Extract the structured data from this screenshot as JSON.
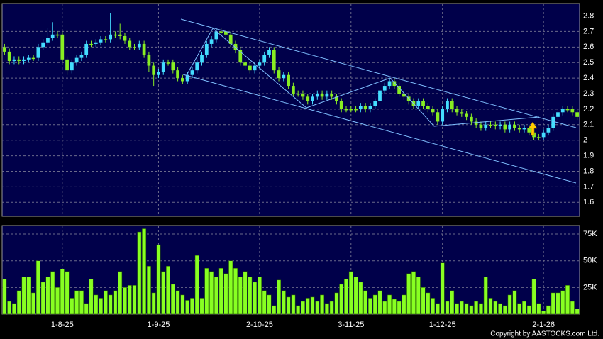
{
  "chart_data": [
    {
      "type": "candlestick",
      "open": [
        2.6,
        2.57,
        2.51,
        2.52,
        2.51,
        2.52,
        2.53,
        2.53,
        2.6,
        2.63,
        2.66,
        2.68,
        2.68,
        2.52,
        2.45,
        2.5,
        2.53,
        2.55,
        2.62,
        2.62,
        2.63,
        2.65,
        2.65,
        2.68,
        2.68,
        2.67,
        2.64,
        2.6,
        2.6,
        2.62,
        2.55,
        2.48,
        2.42,
        2.44,
        2.5,
        2.5,
        2.45,
        2.4,
        2.38,
        2.42,
        2.45,
        2.5,
        2.55,
        2.62,
        2.65,
        2.7,
        2.7,
        2.68,
        2.62,
        2.58,
        2.5,
        2.48,
        2.45,
        2.48,
        2.5,
        2.55,
        2.58,
        2.45,
        2.4,
        2.42,
        2.35,
        2.3,
        2.3,
        2.28,
        2.25,
        2.28,
        2.3,
        2.28,
        2.3,
        2.28,
        2.25,
        2.2,
        2.2,
        2.2,
        2.2,
        2.22,
        2.2,
        2.22,
        2.25,
        2.32,
        2.35,
        2.38,
        2.35,
        2.3,
        2.28,
        2.25,
        2.22,
        2.25,
        2.22,
        2.2,
        2.18,
        2.12,
        2.2,
        2.25,
        2.2,
        2.18,
        2.17,
        2.15,
        2.12,
        2.1,
        2.08,
        2.1,
        2.1,
        2.09,
        2.1,
        2.07,
        2.1,
        2.08,
        2.07,
        2.08,
        2.05,
        2.02,
        2.02,
        2.05,
        2.08,
        2.15,
        2.18,
        2.2,
        2.2,
        2.18
      ],
      "high": [
        2.62,
        2.59,
        2.54,
        2.54,
        2.54,
        2.55,
        2.55,
        2.62,
        2.65,
        2.72,
        2.76,
        2.7,
        2.7,
        2.54,
        2.52,
        2.55,
        2.57,
        2.64,
        2.64,
        2.65,
        2.67,
        2.67,
        2.82,
        2.7,
        2.75,
        2.69,
        2.66,
        2.62,
        2.64,
        2.64,
        2.57,
        2.5,
        2.46,
        2.52,
        2.52,
        2.52,
        2.47,
        2.42,
        2.44,
        2.47,
        2.52,
        2.57,
        2.64,
        2.67,
        2.72,
        2.72,
        2.7,
        2.7,
        2.64,
        2.6,
        2.52,
        2.5,
        2.5,
        2.52,
        2.57,
        2.6,
        2.6,
        2.47,
        2.44,
        2.44,
        2.37,
        2.32,
        2.32,
        2.3,
        2.3,
        2.32,
        2.32,
        2.32,
        2.32,
        2.3,
        2.27,
        2.22,
        2.22,
        2.22,
        2.24,
        2.24,
        2.24,
        2.27,
        2.34,
        2.37,
        2.4,
        2.4,
        2.37,
        2.32,
        2.3,
        2.27,
        2.27,
        2.27,
        2.24,
        2.22,
        2.2,
        2.22,
        2.27,
        2.27,
        2.22,
        2.2,
        2.19,
        2.17,
        2.14,
        2.12,
        2.12,
        2.12,
        2.12,
        2.12,
        2.12,
        2.12,
        2.12,
        2.1,
        2.1,
        2.1,
        2.07,
        2.04,
        2.07,
        2.1,
        2.17,
        2.2,
        2.22,
        2.22,
        2.22,
        2.2
      ],
      "low": [
        2.55,
        2.49,
        2.49,
        2.49,
        2.49,
        2.5,
        2.51,
        2.51,
        2.58,
        2.61,
        2.64,
        2.66,
        2.5,
        2.42,
        2.43,
        2.48,
        2.51,
        2.53,
        2.6,
        2.6,
        2.61,
        2.63,
        2.63,
        2.66,
        2.65,
        2.62,
        2.58,
        2.58,
        2.58,
        2.53,
        2.44,
        2.35,
        2.4,
        2.42,
        2.48,
        2.43,
        2.38,
        2.36,
        2.36,
        2.4,
        2.43,
        2.48,
        2.53,
        2.6,
        2.63,
        2.68,
        2.66,
        2.6,
        2.56,
        2.48,
        2.46,
        2.43,
        2.43,
        2.46,
        2.48,
        2.53,
        2.43,
        2.38,
        2.38,
        2.33,
        2.28,
        2.28,
        2.26,
        2.23,
        2.23,
        2.26,
        2.26,
        2.26,
        2.26,
        2.23,
        2.18,
        2.18,
        2.18,
        2.18,
        2.18,
        2.18,
        2.18,
        2.2,
        2.23,
        2.3,
        2.33,
        2.33,
        2.28,
        2.26,
        2.23,
        2.2,
        2.2,
        2.2,
        2.18,
        2.16,
        2.1,
        2.1,
        2.18,
        2.18,
        2.16,
        2.15,
        2.13,
        2.1,
        2.08,
        2.06,
        2.06,
        2.08,
        2.07,
        2.07,
        2.05,
        2.05,
        2.06,
        2.05,
        2.05,
        2.03,
        2.0,
        2.0,
        2.0,
        2.03,
        2.06,
        2.13,
        2.16,
        2.18,
        2.16,
        2.13
      ],
      "close": [
        2.57,
        2.51,
        2.52,
        2.51,
        2.52,
        2.53,
        2.53,
        2.6,
        2.63,
        2.66,
        2.68,
        2.68,
        2.52,
        2.45,
        2.5,
        2.53,
        2.55,
        2.62,
        2.62,
        2.63,
        2.65,
        2.65,
        2.68,
        2.68,
        2.67,
        2.64,
        2.6,
        2.6,
        2.62,
        2.55,
        2.48,
        2.42,
        2.44,
        2.5,
        2.5,
        2.45,
        2.4,
        2.38,
        2.42,
        2.45,
        2.5,
        2.55,
        2.62,
        2.65,
        2.7,
        2.7,
        2.68,
        2.62,
        2.58,
        2.5,
        2.48,
        2.45,
        2.48,
        2.5,
        2.55,
        2.58,
        2.45,
        2.4,
        2.42,
        2.35,
        2.3,
        2.3,
        2.28,
        2.25,
        2.28,
        2.3,
        2.28,
        2.3,
        2.28,
        2.25,
        2.2,
        2.2,
        2.2,
        2.2,
        2.22,
        2.2,
        2.22,
        2.25,
        2.32,
        2.35,
        2.38,
        2.35,
        2.3,
        2.28,
        2.25,
        2.22,
        2.25,
        2.22,
        2.2,
        2.18,
        2.12,
        2.2,
        2.25,
        2.2,
        2.18,
        2.17,
        2.15,
        2.12,
        2.1,
        2.08,
        2.1,
        2.1,
        2.09,
        2.1,
        2.07,
        2.1,
        2.08,
        2.07,
        2.08,
        2.05,
        2.02,
        2.02,
        2.05,
        2.08,
        2.15,
        2.18,
        2.2,
        2.2,
        2.18,
        2.15
      ],
      "ylim": [
        1.51,
        2.88
      ],
      "yticks": [
        1.6,
        1.7,
        1.8,
        1.9,
        2,
        2.1,
        2.2,
        2.3,
        2.4,
        2.5,
        2.6,
        2.7,
        2.8
      ],
      "up_color": "#44ddff",
      "down_color": "#88ee22",
      "grid": true
    },
    {
      "type": "bar",
      "categories": [
        null,
        null,
        null,
        null,
        null,
        null,
        null,
        null,
        null,
        null,
        null,
        null,
        "1-8-25",
        null,
        null,
        null,
        null,
        null,
        null,
        null,
        null,
        null,
        null,
        null,
        null,
        null,
        null,
        null,
        null,
        null,
        null,
        null,
        "1-9-25",
        null,
        null,
        null,
        null,
        null,
        null,
        null,
        null,
        null,
        null,
        null,
        null,
        null,
        null,
        null,
        null,
        null,
        null,
        null,
        null,
        "2-10-25",
        null,
        null,
        null,
        null,
        null,
        null,
        null,
        null,
        null,
        null,
        null,
        null,
        null,
        null,
        null,
        null,
        null,
        null,
        "3-11-25",
        null,
        null,
        null,
        null,
        null,
        null,
        null,
        null,
        null,
        null,
        null,
        null,
        null,
        null,
        null,
        null,
        null,
        null,
        "1-12-25",
        null,
        null,
        null,
        null,
        null,
        null,
        null,
        null,
        null,
        null,
        null,
        null,
        null,
        null,
        null,
        null,
        null,
        null,
        null,
        null,
        "2-1-26",
        null,
        null,
        null,
        null,
        null,
        null,
        null
      ],
      "values": [
        33000,
        12000,
        10000,
        22000,
        35000,
        35000,
        20000,
        50000,
        30000,
        35000,
        40000,
        25000,
        42000,
        40000,
        15000,
        22000,
        22000,
        10000,
        33000,
        18000,
        15000,
        22000,
        18000,
        22000,
        40000,
        25000,
        27000,
        27000,
        77000,
        80000,
        45000,
        20000,
        65000,
        40000,
        45000,
        28000,
        22000,
        18000,
        13000,
        15000,
        55000,
        15000,
        43000,
        40000,
        35000,
        43000,
        38000,
        50000,
        43000,
        35000,
        40000,
        35000,
        30000,
        35000,
        22000,
        18000,
        8000,
        32000,
        22000,
        16000,
        18000,
        8000,
        12000,
        15000,
        16000,
        12000,
        18000,
        10000,
        12000,
        20000,
        28000,
        33000,
        40000,
        35000,
        30000,
        22000,
        15000,
        18000,
        22000,
        12000,
        18000,
        14000,
        12000,
        18000,
        38000,
        40000,
        35000,
        25000,
        20000,
        15000,
        10000,
        48000,
        12000,
        22000,
        10000,
        12000,
        10000,
        8000,
        12000,
        10000,
        35000,
        15000,
        12000,
        10000,
        8000,
        18000,
        22000,
        10000,
        12000,
        8000,
        33000,
        10000,
        3000,
        8000,
        20000,
        20000,
        22000,
        27000,
        12000,
        5000
      ],
      "ylim": [
        0,
        83000
      ],
      "yticks": [
        {
          "value": 25000,
          "label": "25K"
        },
        {
          "value": 50000,
          "label": "50K"
        },
        {
          "value": 75000,
          "label": "75K"
        }
      ],
      "color": "#88ff22",
      "grid": true
    }
  ],
  "copyright": "Copyright by AASTOCKS.com Ltd."
}
